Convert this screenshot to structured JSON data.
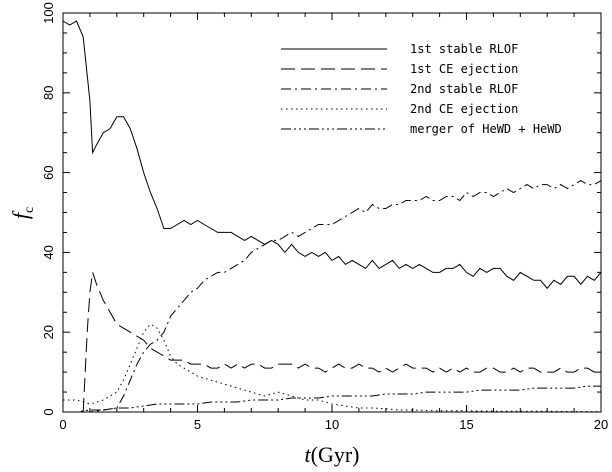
{
  "chart_data": {
    "type": "line",
    "title": "",
    "xlabel_main": "t",
    "xlabel_unit": "(Gyr)",
    "ylabel_main": "f",
    "ylabel_sub": "c",
    "xlim": [
      0,
      20
    ],
    "ylim": [
      0,
      100
    ],
    "x_ticks": [
      0,
      5,
      10,
      15,
      20
    ],
    "y_ticks": [
      0,
      20,
      40,
      60,
      80,
      100
    ],
    "grid": false,
    "legend_position": "top-right",
    "series": [
      {
        "name": "1st stable RLOF",
        "style": "solid",
        "x": [
          0,
          0.25,
          0.5,
          0.75,
          1.0,
          1.1,
          1.25,
          1.5,
          1.75,
          2.0,
          2.25,
          2.5,
          2.75,
          3.0,
          3.25,
          3.5,
          3.75,
          4.0,
          4.25,
          4.5,
          4.75,
          5.0,
          5.25,
          5.5,
          5.75,
          6.0,
          6.25,
          6.5,
          6.75,
          7.0,
          7.25,
          7.5,
          7.75,
          8.0,
          8.25,
          8.5,
          8.75,
          9.0,
          9.25,
          9.5,
          9.75,
          10.0,
          10.25,
          10.5,
          10.75,
          11.0,
          11.25,
          11.5,
          11.75,
          12.0,
          12.25,
          12.5,
          12.75,
          13.0,
          13.25,
          13.5,
          13.75,
          14.0,
          14.25,
          14.5,
          14.75,
          15.0,
          15.25,
          15.5,
          15.75,
          16.0,
          16.25,
          16.5,
          16.75,
          17.0,
          17.25,
          17.5,
          17.75,
          18.0,
          18.25,
          18.5,
          18.75,
          19.0,
          19.25,
          19.5,
          19.75,
          20.0
        ],
        "y": [
          98,
          97,
          98,
          94,
          78,
          65,
          67,
          70,
          71,
          74,
          74,
          71,
          66,
          60,
          55,
          51,
          46,
          46,
          47,
          48,
          47,
          48,
          47,
          46,
          45,
          45,
          45,
          44,
          43,
          44,
          43,
          42,
          43,
          42,
          40,
          42,
          40,
          39,
          40,
          39,
          40,
          38,
          39,
          37,
          38,
          37,
          36,
          38,
          36,
          37,
          38,
          36,
          37,
          36,
          37,
          36,
          35,
          35,
          36,
          36,
          37,
          35,
          34,
          36,
          35,
          36,
          36,
          34,
          33,
          35,
          34,
          33,
          33,
          31,
          33,
          32,
          34,
          34,
          32,
          34,
          33,
          35
        ]
      },
      {
        "name": "1st CE ejection",
        "style": "dashed",
        "x": [
          0.75,
          0.9,
          1.0,
          1.1,
          1.25,
          1.5,
          1.75,
          2.0,
          2.25,
          2.5,
          2.75,
          3.0,
          3.25,
          3.5,
          3.75,
          4.0,
          4.25,
          4.5,
          4.75,
          5.0,
          5.25,
          5.5,
          5.75,
          6.0,
          6.25,
          6.5,
          6.75,
          7.0,
          7.25,
          7.5,
          7.75,
          8.0,
          8.25,
          8.5,
          8.75,
          9.0,
          9.25,
          9.5,
          9.75,
          10.0,
          10.25,
          10.5,
          10.75,
          11.0,
          11.25,
          11.5,
          11.75,
          12.0,
          12.25,
          12.5,
          12.75,
          13.0,
          13.25,
          13.5,
          13.75,
          14.0,
          14.25,
          14.5,
          14.75,
          15.0,
          15.25,
          15.5,
          15.75,
          16.0,
          16.25,
          16.5,
          16.75,
          17.0,
          17.25,
          17.5,
          17.75,
          18.0,
          18.25,
          18.5,
          18.75,
          19.0,
          19.25,
          19.5,
          19.75,
          20.0
        ],
        "y": [
          0,
          20,
          30,
          35,
          32,
          28,
          25,
          22,
          21,
          20,
          19,
          18,
          16,
          15,
          14,
          13,
          13,
          13,
          12,
          12,
          12,
          11,
          11,
          12,
          11,
          12,
          11,
          12,
          12,
          11,
          11,
          12,
          12,
          12,
          11,
          12,
          11,
          11,
          10,
          11,
          12,
          11,
          11,
          12,
          11,
          11,
          10,
          11,
          10,
          11,
          12,
          11,
          11,
          11,
          10,
          11,
          10,
          11,
          10,
          11,
          10,
          10,
          11,
          11,
          10,
          10,
          11,
          10,
          11,
          11,
          10,
          10,
          10,
          11,
          10,
          10,
          11,
          11,
          10,
          10
        ]
      },
      {
        "name": "2nd stable RLOF",
        "style": "dashdot",
        "x": [
          0,
          0.5,
          1.0,
          1.5,
          2.0,
          2.25,
          2.5,
          2.75,
          3.0,
          3.25,
          3.5,
          3.75,
          4.0,
          4.25,
          4.5,
          4.75,
          5.0,
          5.25,
          5.5,
          5.75,
          6.0,
          6.25,
          6.5,
          6.75,
          7.0,
          7.25,
          7.5,
          7.75,
          8.0,
          8.25,
          8.5,
          8.75,
          9.0,
          9.25,
          9.5,
          9.75,
          10.0,
          10.25,
          10.5,
          10.75,
          11.0,
          11.25,
          11.5,
          11.75,
          12.0,
          12.25,
          12.5,
          12.75,
          13.0,
          13.25,
          13.5,
          13.75,
          14.0,
          14.25,
          14.5,
          14.75,
          15.0,
          15.25,
          15.5,
          15.75,
          16.0,
          16.25,
          16.5,
          16.75,
          17.0,
          17.25,
          17.5,
          17.75,
          18.0,
          18.25,
          18.5,
          18.75,
          19.0,
          19.25,
          19.5,
          19.75,
          20.0
        ],
        "y": [
          0,
          0,
          0,
          0.5,
          1,
          4,
          8,
          12,
          15,
          17,
          18,
          20,
          24,
          26,
          28,
          30,
          31,
          33,
          34,
          35,
          35,
          36,
          37,
          38,
          40,
          41,
          42,
          43,
          43,
          44,
          45,
          44,
          45,
          46,
          47,
          47,
          47,
          48,
          49,
          50,
          51,
          50,
          52,
          51,
          51,
          52,
          52,
          53,
          53,
          53,
          54,
          53,
          53,
          54,
          54,
          53,
          55,
          54,
          55,
          55,
          54,
          55,
          56,
          55,
          56,
          57,
          56,
          57,
          57,
          56,
          57,
          56,
          57,
          58,
          57,
          57,
          58
        ]
      },
      {
        "name": "2nd CE ejection",
        "style": "dotted",
        "x": [
          0,
          0.5,
          1.0,
          1.5,
          2.0,
          2.25,
          2.5,
          2.75,
          3.0,
          3.25,
          3.5,
          3.75,
          4.0,
          4.25,
          4.5,
          4.75,
          5.0,
          5.5,
          6.0,
          6.5,
          7.0,
          7.5,
          8.0,
          8.5,
          9.0,
          9.5,
          10.0,
          10.5,
          11.0,
          11.5,
          12.0,
          12.5,
          13.0,
          14.0,
          15.0,
          16.0,
          17.0,
          18.0,
          19.0,
          20.0
        ],
        "y": [
          3,
          3,
          2,
          3,
          5,
          8,
          12,
          16,
          20,
          22,
          21,
          18,
          14,
          12,
          11,
          10,
          9,
          8,
          7,
          6,
          5,
          4,
          5,
          4,
          3,
          3,
          2,
          1.5,
          1,
          1,
          0.8,
          0.5,
          0.5,
          0.3,
          0.3,
          0.2,
          0.2,
          0.2,
          0.1,
          0.1
        ]
      },
      {
        "name": "merger of HeWD + HeWD",
        "style": "dashdotdotdot",
        "x": [
          0,
          0.5,
          1.0,
          1.5,
          2.0,
          2.5,
          3.0,
          3.5,
          4.0,
          4.5,
          5.0,
          5.5,
          6.0,
          6.5,
          7.0,
          7.5,
          8.0,
          8.5,
          9.0,
          9.5,
          10.0,
          10.5,
          11.0,
          11.5,
          12.0,
          12.5,
          13.0,
          13.5,
          14.0,
          14.5,
          15.0,
          15.5,
          16.0,
          16.5,
          17.0,
          17.5,
          18.0,
          18.5,
          19.0,
          19.5,
          20.0
        ],
        "y": [
          0,
          0,
          0.5,
          0.5,
          1,
          1,
          1.5,
          2,
          2,
          2,
          2,
          2.5,
          2.5,
          2.5,
          3,
          3,
          3,
          3.5,
          3.5,
          3.5,
          4,
          4,
          4,
          4,
          4.5,
          4.5,
          4.5,
          5,
          5,
          5,
          5,
          5.5,
          5.5,
          5.5,
          5.5,
          6,
          6,
          6,
          6,
          6.5,
          6.5
        ]
      }
    ]
  }
}
